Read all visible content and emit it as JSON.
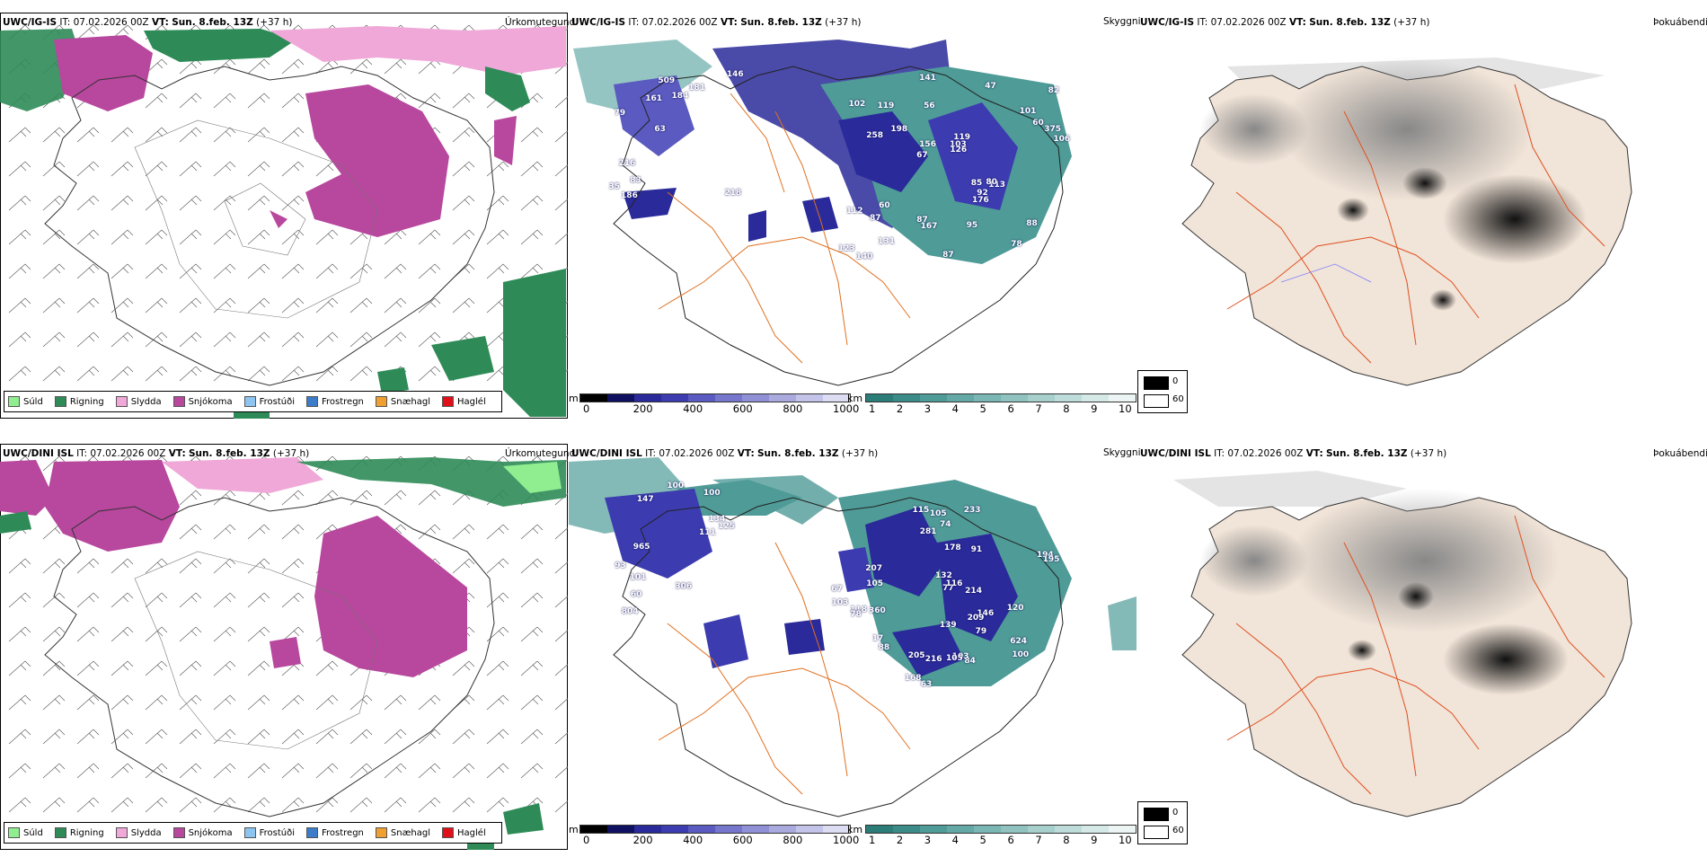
{
  "rows": [
    {
      "model": "UWC/IG-IS",
      "it_label": "IT:",
      "it_value": "07.02.2026 00Z",
      "vt_label": "VT:",
      "vt_value": "Sun. 8.feb. 13Z",
      "lead": "(+37 h)",
      "snow_labels": [
        "218",
        "79",
        "146",
        "63",
        "181",
        "186",
        "509",
        "184",
        "216",
        "161",
        "35",
        "83",
        "56",
        "119",
        "113",
        "102",
        "141",
        "106",
        "85",
        "60",
        "67",
        "87",
        "156",
        "119",
        "47",
        "60",
        "78",
        "88",
        "80",
        "87",
        "198",
        "258",
        "176",
        "131",
        "375",
        "103",
        "123",
        "167",
        "126",
        "112",
        "101",
        "82",
        "92",
        "95",
        "87",
        "140"
      ]
    },
    {
      "model": "UWC/DINI ISL",
      "it_label": "IT:",
      "it_value": "07.02.2026 00Z",
      "vt_label": "VT:",
      "vt_value": "Sun. 8.feb. 13Z",
      "lead": "(+37 h)",
      "snow_labels": [
        "804",
        "100",
        "147",
        "134",
        "306",
        "965",
        "101",
        "60",
        "125",
        "111",
        "93",
        "100",
        "79",
        "77",
        "63",
        "115",
        "100",
        "67",
        "17",
        "168",
        "84",
        "105",
        "281",
        "116",
        "132",
        "205",
        "118",
        "233",
        "178",
        "146",
        "207",
        "88",
        "103",
        "139",
        "624",
        "78",
        "194",
        "214",
        "91",
        "120",
        "195",
        "74",
        "216",
        "360",
        "103",
        "105",
        "209",
        "105"
      ]
    }
  ],
  "panel_titles": {
    "precip_type": "Úrkomutegund",
    "cloud": "Skyggni",
    "fog": "Þokuábendi"
  },
  "precip_legend": [
    {
      "label": "Súld",
      "color": "#90ee90"
    },
    {
      "label": "Rigning",
      "color": "#2e8b57"
    },
    {
      "label": "Slydda",
      "color": "#f0a8d8"
    },
    {
      "label": "Snjókoma",
      "color": "#b8479e"
    },
    {
      "label": "Frostúði",
      "color": "#8ec5f0"
    },
    {
      "label": "Frostregn",
      "color": "#3d7cc9"
    },
    {
      "label": "Snæhagl",
      "color": "#f0a030"
    },
    {
      "label": "Haglél",
      "color": "#e0101a"
    }
  ],
  "snow_scale": {
    "unit": "m",
    "ticks": [
      "0",
      "200",
      "400",
      "600",
      "800",
      "1000"
    ],
    "colors": [
      "#000000",
      "#101060",
      "#2a2a9a",
      "#3c3cb0",
      "#5a5ac0",
      "#7676cc",
      "#9090d6",
      "#aaaadf",
      "#c4c4ea",
      "#dcdcf2"
    ]
  },
  "vis_scale": {
    "unit": "km",
    "ticks": [
      "1",
      "2",
      "3",
      "4",
      "5",
      "6",
      "7",
      "8",
      "9",
      "10"
    ],
    "colors": [
      "#2c7c78",
      "#3b8c88",
      "#4f9b97",
      "#64a9a5",
      "#7ab6b3",
      "#90c3c0",
      "#a7d0cd",
      "#bedcda",
      "#d5e9e7",
      "#ecf5f4"
    ]
  },
  "fog_legend": {
    "items": [
      {
        "value": "0",
        "color": "#000000"
      },
      {
        "value": "60",
        "color": "#ffffff"
      }
    ]
  }
}
